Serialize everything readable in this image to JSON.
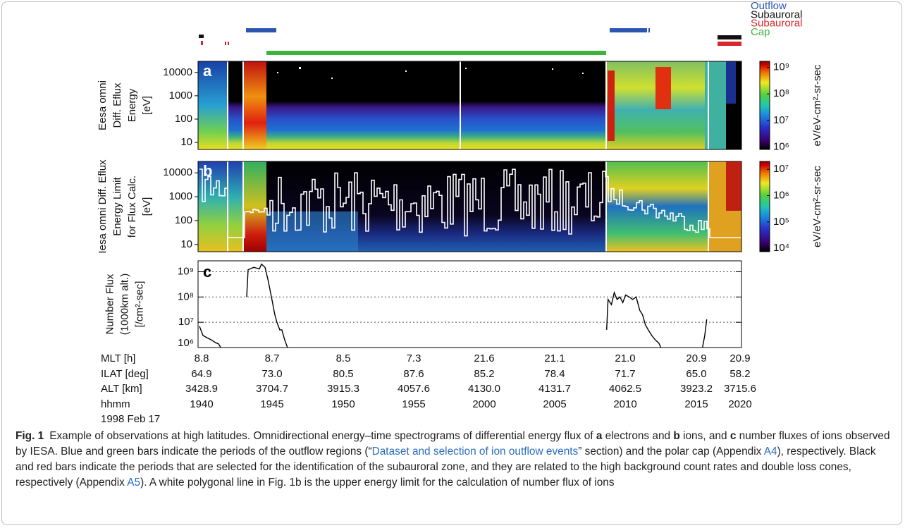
{
  "legend": [
    {
      "name": "Outflow",
      "color": "#2a56b0"
    },
    {
      "name": "Subauroral",
      "color": "#111111"
    },
    {
      "name": "Subauroral",
      "color": "#d8262c"
    },
    {
      "name": "Cap",
      "color": "#3cb43c"
    }
  ],
  "chart_data": [
    {
      "type": "spectrogram",
      "panel_label": "a",
      "ylabel": [
        "Eesa omni",
        "Diff. Eflux",
        "Energy",
        "[eV]"
      ],
      "ylim": [
        5,
        30000
      ],
      "log_y": true,
      "yticks": [
        10,
        100,
        1000,
        10000
      ],
      "colorbar_label": "eV/eV-cm²-sr-sec",
      "clim": [
        800000,
        1700000000
      ],
      "colorbar_ticks": [
        {
          "value": 1000000,
          "label": "10⁶"
        },
        {
          "value": 10000000,
          "label": "10⁷"
        },
        {
          "value": 100000000,
          "label": "10⁸"
        },
        {
          "value": 1000000000,
          "label": "10⁹"
        }
      ]
    },
    {
      "type": "spectrogram",
      "panel_label": "b",
      "ylabel": [
        "Iesa omni Diff. Eflux",
        "Energy Limit",
        "for Flux Calc.",
        "[eV]"
      ],
      "ylim": [
        5,
        30000
      ],
      "log_y": true,
      "yticks": [
        10,
        100,
        1000,
        10000
      ],
      "colorbar_label": "eV/eV-cm²-sr-sec",
      "clim": [
        7400,
        20000000
      ],
      "colorbar_ticks": [
        {
          "value": 10000,
          "label": "10⁴"
        },
        {
          "value": 100000,
          "label": "10⁵"
        },
        {
          "value": 1000000,
          "label": "10⁶"
        },
        {
          "value": 10000000,
          "label": "10⁷"
        }
      ]
    },
    {
      "type": "line",
      "panel_label": "c",
      "ylabel": [
        "Number Flux",
        "(1000km alt.)",
        "[/cm²-sec]"
      ],
      "log_y": true,
      "ylim": [
        1000000,
        2700000000
      ],
      "yticks": [
        {
          "value": 1000000,
          "label": "10⁶"
        },
        {
          "value": 10000000,
          "label": "10⁷"
        },
        {
          "value": 100000000,
          "label": "10⁸"
        },
        {
          "value": 1000000000,
          "label": "10⁹"
        }
      ],
      "grid": true,
      "xlim": [
        -0.25,
        38.2
      ],
      "x": [
        -0.15,
        0.1,
        0.35,
        0.7,
        0.95,
        1.2,
        1.35,
        2,
        3.19,
        3.29,
        3.69,
        4.09,
        4.24,
        4.49,
        4.69,
        4.94,
        5.18,
        5.33,
        5.53,
        5.68,
        5.88,
        6.08,
        20,
        28.66,
        28.76,
        29.0,
        29.2,
        29.4,
        29.6,
        29.8,
        30.0,
        30.25,
        30.5,
        30.75,
        31.0,
        31.2,
        31.4,
        31.6,
        31.85,
        32.1,
        32.35,
        32.5,
        34,
        35.44,
        35.6,
        35.74
      ],
      "series": [
        {
          "color": "#000000",
          "values": [
            7000000,
            3000000,
            2500000,
            2000000,
            1600000,
            1400000,
            1000000,
            null,
            100000000,
            1200000000,
            1500000000,
            1300000000,
            2000000000,
            1500000000,
            500000000,
            100000000,
            20000000,
            10000000,
            5000000,
            5000000,
            2000000,
            1000000,
            null,
            5000000,
            80000000,
            50000000,
            150000000,
            80000000,
            100000000,
            60000000,
            120000000,
            100000000,
            80000000,
            100000000,
            30000000,
            20000000,
            8000000,
            5000000,
            3000000,
            2000000,
            1500000,
            1000000,
            null,
            1000000,
            3000000,
            13000000
          ]
        }
      ]
    }
  ],
  "time_axis": {
    "rows": [
      {
        "name": "MLT [h]",
        "values": [
          "8.8",
          "8.7",
          "8.5",
          "7.3",
          "21.6",
          "21.1",
          "21.0",
          "20.9",
          "20.9"
        ]
      },
      {
        "name": "ILAT [deg]",
        "values": [
          "64.9",
          "73.0",
          "80.5",
          "87.6",
          "85.2",
          "78.4",
          "71.7",
          "65.0",
          "58.2"
        ]
      },
      {
        "name": "ALT [km]",
        "values": [
          "3428.9",
          "3704.7",
          "3915.3",
          "4057.6",
          "4130.0",
          "4131.7",
          "4062.5",
          "3923.2",
          "3715.6"
        ]
      },
      {
        "name": "hhmm",
        "values": [
          "1940",
          "1945",
          "1950",
          "1955",
          "2000",
          "2005",
          "2010",
          "2015",
          "2020"
        ]
      }
    ],
    "date": "1998 Feb 17"
  },
  "caption": {
    "runs": [
      "Fig. 1",
      "Example of observations at high latitudes. Omnidirectional energy–time spectrograms of differential energy flux of ",
      "a",
      " electrons and ",
      "b",
      " ions, and ",
      "c",
      " number fluxes of ions observed by IESA. Blue and green bars indicate the periods of the outflow regions (“",
      "Dataset and selection of ion outflow events",
      "” section) and the polar cap (Appendix ",
      "A4",
      "), respectively. Black and red bars indicate the periods that are selected for the identification of the subauroral zone, and they are related to the high background count rates and double loss cones, respectively (Appendix ",
      "A5",
      "). A white polygonal line in Fig. 1b is the upper energy limit for the calculation of number flux of ions"
    ]
  }
}
